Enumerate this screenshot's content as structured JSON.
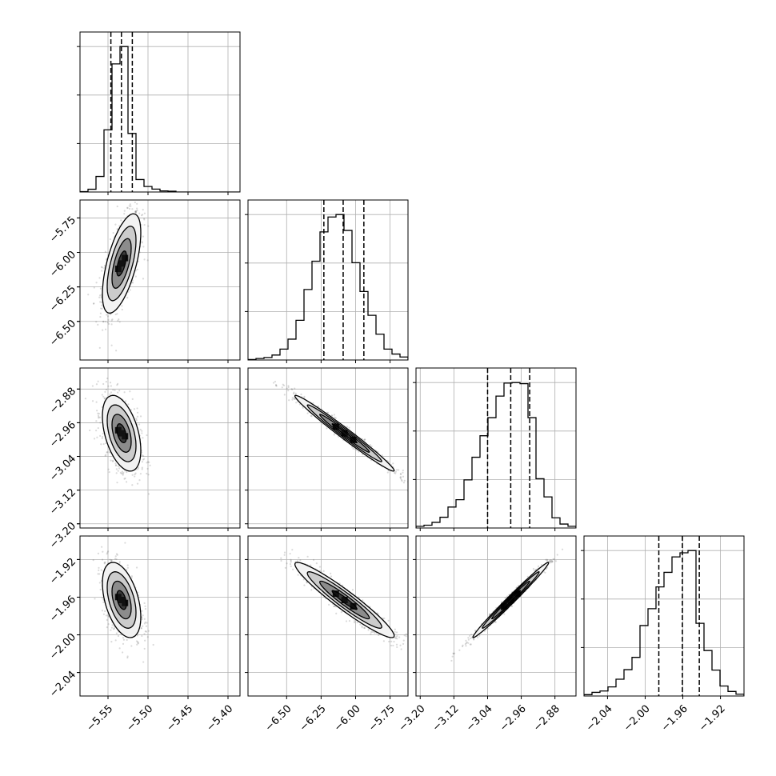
{
  "chart_data": {
    "type": "corner",
    "parameters": [
      {
        "range": [
          -5.585,
          -5.385
        ],
        "ticks": [
          -5.55,
          -5.5,
          -5.45,
          -5.4
        ],
        "tick_labels": [
          "−5.55",
          "−5.50",
          "−5.45",
          "−5.40"
        ],
        "quantiles": [
          -5.5464,
          -5.5332,
          -5.5196
        ],
        "hist": {
          "edges": [
            -5.585,
            -5.575,
            -5.565,
            -5.555,
            -5.545,
            -5.535,
            -5.525,
            -5.515,
            -5.505,
            -5.495,
            -5.485,
            -5.475,
            -5.465,
            -5.455,
            -5.445,
            -5.435,
            -5.425,
            -5.415,
            -5.405,
            -5.395,
            -5.385
          ],
          "counts": [
            2,
            15,
            85,
            340,
            700,
            795,
            320,
            68,
            30,
            16,
            6,
            4,
            0,
            0,
            0,
            0,
            0,
            0,
            0,
            0
          ]
        }
      },
      {
        "range": [
          -6.78,
          -5.62
        ],
        "ticks": [
          -6.5,
          -6.25,
          -6.0,
          -5.75
        ],
        "tick_labels": [
          "−6.50",
          "−6.25",
          "−6.00",
          "−5.75"
        ],
        "quantiles": [
          -6.23,
          -6.09,
          -5.94
        ],
        "hist": {
          "edges": [
            -6.78,
            -6.722,
            -6.664,
            -6.606,
            -6.548,
            -6.49,
            -6.432,
            -6.374,
            -6.316,
            -6.258,
            -6.2,
            -6.142,
            -6.084,
            -6.026,
            -5.968,
            -5.91,
            -5.852,
            -5.794,
            -5.736,
            -5.678,
            -5.62
          ],
          "counts": [
            1,
            3,
            5,
            10,
            22,
            42,
            80,
            142,
            199,
            258,
            288,
            293,
            261,
            196,
            138,
            90,
            52,
            22,
            12,
            6
          ]
        }
      },
      {
        "range": [
          -3.21,
          -2.83
        ],
        "ticks": [
          -3.2,
          -3.12,
          -3.04,
          -2.96,
          -2.88
        ],
        "tick_labels": [
          "−3.20",
          "−3.12",
          "−3.04",
          "−2.96",
          "−2.88"
        ],
        "quantiles": [
          -3.04,
          -2.985,
          -2.94
        ],
        "hist": {
          "edges": [
            -3.21,
            -3.191,
            -3.172,
            -3.153,
            -3.134,
            -3.115,
            -3.096,
            -3.077,
            -3.058,
            -3.039,
            -3.02,
            -3.001,
            -2.982,
            -2.963,
            -2.944,
            -2.925,
            -2.906,
            -2.887,
            -2.868,
            -2.849,
            -2.83
          ],
          "counts": [
            3,
            5,
            10,
            19,
            37,
            50,
            85,
            125,
            163,
            195,
            233,
            256,
            257,
            255,
            195,
            87,
            55,
            18,
            7,
            3
          ]
        }
      },
      {
        "range": [
          -2.065,
          -1.895
        ],
        "ticks": [
          -2.04,
          -2.0,
          -1.96,
          -1.92
        ],
        "tick_labels": [
          "−2.04",
          "−2.00",
          "−1.96",
          "−1.92"
        ],
        "quantiles": [
          -1.9855,
          -1.9605,
          -1.9425
        ],
        "hist": {
          "edges": [
            -2.065,
            -2.0565,
            -2.048,
            -2.0395,
            -2.031,
            -2.0225,
            -2.014,
            -2.0055,
            -1.997,
            -1.9885,
            -1.98,
            -1.9715,
            -1.963,
            -1.9545,
            -1.946,
            -1.9375,
            -1.929,
            -1.9205,
            -1.912,
            -1.9035,
            -1.895
          ],
          "counts": [
            3,
            8,
            11,
            20,
            37,
            58,
            85,
            155,
            192,
            240,
            272,
            306,
            315,
            320,
            160,
            100,
            57,
            22,
            10,
            4
          ]
        }
      }
    ],
    "pairs": [
      {
        "i": 1,
        "j": 0,
        "center": [
          -5.533,
          -6.08
        ],
        "sd": [
          0.012,
          0.18
        ],
        "rho": 0.62
      },
      {
        "i": 2,
        "j": 0,
        "center": [
          -5.533,
          -2.985
        ],
        "sd": [
          0.012,
          0.045
        ],
        "rho": -0.45
      },
      {
        "i": 3,
        "j": 0,
        "center": [
          -5.533,
          -1.963
        ],
        "sd": [
          0.012,
          0.02
        ],
        "rho": -0.45
      },
      {
        "i": 2,
        "j": 1,
        "center": [
          -6.08,
          -2.985
        ],
        "sd": [
          0.18,
          0.045
        ],
        "rho": -0.985
      },
      {
        "i": 3,
        "j": 1,
        "center": [
          -6.08,
          -1.963
        ],
        "sd": [
          0.18,
          0.02
        ],
        "rho": -0.95
      },
      {
        "i": 3,
        "j": 2,
        "center": [
          -2.985,
          -1.963
        ],
        "sd": [
          0.045,
          0.02
        ],
        "rho": 0.99
      }
    ],
    "contour_levels_sigma": [
      0.5,
      1.0,
      1.5,
      2.0
    ],
    "colors": {
      "ink": "#000000",
      "grid": "#b0b0b0",
      "points": "#555555"
    },
    "grid": true
  }
}
